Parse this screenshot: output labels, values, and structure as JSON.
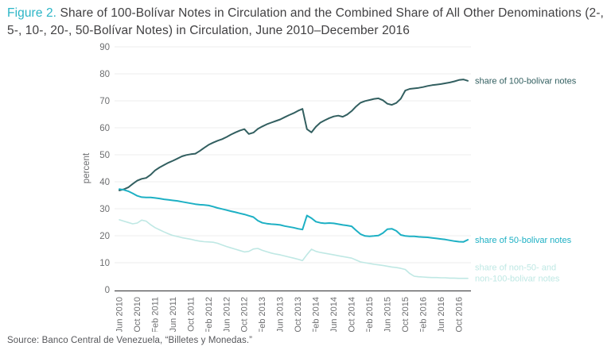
{
  "title": {
    "prefix": "Figure 2.",
    "line1": "Share of 100-Bolívar Notes in Circulation and the Combined Share of All Other",
    "line2": "Denominations (2-, 5-, 10-, 20-, 50-Bolívar Notes) in Circulation, June 2010–December 2016"
  },
  "source": "Source: Banco Central de Venezuela, “Billetes y Monedas.”",
  "colors": {
    "accent_teal": "#2bb5c6",
    "series_100": "#325f60",
    "series_50": "#1db0c4",
    "series_other": "#bfe8e4",
    "axis_text": "#6d6e70",
    "gridline": "#ececec",
    "axis_line": "#4b4b4d",
    "title_text": "#414042"
  },
  "chart_data": {
    "type": "line",
    "title": "Share of 100-Bolívar Notes in Circulation and the Combined Share of All Other Denominations (2-, 5-, 10-, 20-, 50-Bolívar Notes) in Circulation, June 2010–December 2016",
    "xlabel": "",
    "ylabel": "percent",
    "ylim": [
      0,
      90
    ],
    "y_ticks": [
      0,
      10,
      20,
      30,
      40,
      50,
      60,
      70,
      80,
      90
    ],
    "grid": "horizontal",
    "legend_position": "right-of-line-ends",
    "x_interval": "monthly",
    "x_start": "Jun 2010",
    "x_end": "Dec 2016",
    "n_points": 79,
    "x_tick_every_months": 4,
    "x_tick_labels": [
      "Jun 2010",
      "Oct 2010",
      "Feb 2011",
      "Jun 2011",
      "Oct 2011",
      "Feb 2012",
      "Jun 2012",
      "Oct 2012",
      "Feb 2013",
      "Jun 2013",
      "Oct 2013",
      "Feb 2014",
      "Jun 2014",
      "Oct 2014",
      "Feb 2015",
      "Jun 2015",
      "Oct 2015",
      "Feb 2016",
      "Jun 2016",
      "Oct 2016"
    ],
    "series": [
      {
        "id": "100-bolivar",
        "label_lines": [
          "share of 100-bolivar notes"
        ],
        "color": "#325f60",
        "stroke_width": 2,
        "values": [
          36.8,
          37.2,
          37.9,
          39.2,
          40.4,
          41.1,
          41.4,
          42.6,
          44.2,
          45.3,
          46.2,
          47.1,
          47.8,
          48.6,
          49.4,
          49.9,
          50.2,
          50.4,
          51.4,
          52.6,
          53.7,
          54.5,
          55.2,
          55.8,
          56.6,
          57.5,
          58.3,
          59.0,
          59.5,
          57.7,
          58.2,
          59.6,
          60.5,
          61.3,
          61.9,
          62.5,
          63.1,
          63.9,
          64.7,
          65.4,
          66.3,
          67.0,
          59.5,
          58.3,
          60.4,
          61.9,
          62.8,
          63.6,
          64.2,
          64.5,
          64.1,
          64.9,
          66.2,
          67.9,
          69.3,
          69.9,
          70.3,
          70.7,
          70.9,
          70.2,
          68.9,
          68.5,
          69.2,
          70.8,
          73.8,
          74.4,
          74.6,
          74.8,
          75.1,
          75.5,
          75.8,
          76.0,
          76.2,
          76.5,
          76.8,
          77.2,
          77.7,
          77.9,
          77.4
        ]
      },
      {
        "id": "50-bolivar",
        "label_lines": [
          "share of 50-bolivar notes"
        ],
        "color": "#1db0c4",
        "stroke_width": 2,
        "values": [
          37.3,
          37.0,
          36.5,
          35.7,
          34.8,
          34.3,
          34.2,
          34.2,
          34.0,
          33.8,
          33.5,
          33.3,
          33.1,
          32.9,
          32.6,
          32.3,
          32.0,
          31.7,
          31.5,
          31.4,
          31.2,
          30.8,
          30.3,
          29.9,
          29.5,
          29.1,
          28.7,
          28.3,
          27.9,
          27.4,
          26.9,
          25.6,
          24.8,
          24.5,
          24.3,
          24.2,
          24.0,
          23.6,
          23.3,
          23.0,
          22.6,
          22.3,
          27.5,
          26.5,
          25.2,
          24.8,
          24.6,
          24.7,
          24.6,
          24.3,
          24.0,
          23.8,
          23.5,
          22.0,
          20.6,
          19.9,
          19.8,
          19.9,
          20.1,
          21.0,
          22.4,
          22.6,
          21.8,
          20.3,
          19.9,
          19.8,
          19.8,
          19.6,
          19.5,
          19.4,
          19.2,
          19.0,
          18.8,
          18.6,
          18.3,
          18.0,
          17.8,
          17.7,
          18.5
        ]
      },
      {
        "id": "non-50-non-100",
        "label_lines": [
          "share of non-50- and",
          "non-100-bolivar notes"
        ],
        "color": "#bfe8e4",
        "stroke_width": 1.6,
        "values": [
          25.9,
          25.4,
          24.9,
          24.4,
          24.7,
          25.8,
          25.4,
          24.1,
          23.0,
          22.2,
          21.4,
          20.7,
          20.1,
          19.7,
          19.3,
          19.0,
          18.7,
          18.3,
          18.0,
          17.8,
          17.7,
          17.6,
          17.2,
          16.6,
          16.0,
          15.5,
          15.0,
          14.5,
          14.0,
          14.2,
          15.1,
          15.3,
          14.6,
          14.1,
          13.6,
          13.2,
          12.9,
          12.5,
          12.1,
          11.7,
          11.3,
          10.8,
          13.0,
          15.0,
          14.2,
          13.8,
          13.5,
          13.2,
          12.9,
          12.6,
          12.3,
          12.0,
          11.7,
          11.0,
          10.3,
          10.0,
          9.7,
          9.4,
          9.2,
          9.0,
          8.7,
          8.4,
          8.2,
          7.9,
          7.5,
          6.0,
          5.0,
          4.8,
          4.7,
          4.6,
          4.5,
          4.5,
          4.4,
          4.4,
          4.3,
          4.3,
          4.2,
          4.2,
          4.2
        ]
      }
    ]
  }
}
